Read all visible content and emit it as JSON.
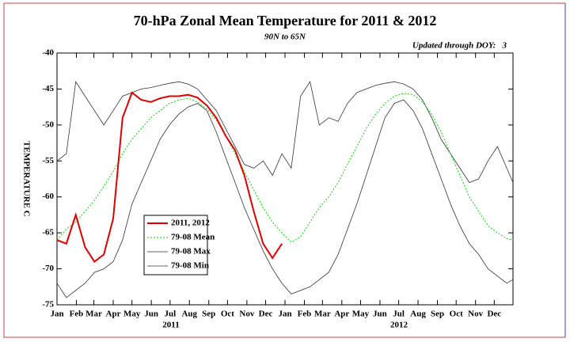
{
  "chart_data": {
    "type": "line",
    "title": "70-hPa Zonal Mean Temperature for 2011 & 2012",
    "subtitle": "90N to 65N",
    "annotation": "Updated through DOY:   3",
    "ylabel": "TEMPERATURE C",
    "year_labels": [
      "2011",
      "2012"
    ],
    "x": [
      0,
      15,
      30,
      45,
      60,
      75,
      90,
      105,
      120,
      135,
      150,
      165,
      180,
      195,
      210,
      225,
      240,
      255,
      270,
      285,
      300,
      315,
      330,
      345,
      360,
      375,
      390,
      405,
      420,
      435,
      450,
      465,
      480,
      495,
      510,
      525,
      540,
      555,
      570,
      585,
      600,
      615,
      630,
      645,
      660,
      675,
      690,
      705,
      720,
      730
    ],
    "xlim": [
      0,
      730
    ],
    "xticks": [
      {
        "value": 0,
        "label": "Jan"
      },
      {
        "value": 31,
        "label": "Feb"
      },
      {
        "value": 59,
        "label": "Mar"
      },
      {
        "value": 90,
        "label": "Apr"
      },
      {
        "value": 120,
        "label": "May"
      },
      {
        "value": 151,
        "label": "Jun"
      },
      {
        "value": 181,
        "label": "Jul"
      },
      {
        "value": 212,
        "label": "Aug"
      },
      {
        "value": 243,
        "label": "Sep"
      },
      {
        "value": 273,
        "label": "Oct"
      },
      {
        "value": 304,
        "label": "Nov"
      },
      {
        "value": 334,
        "label": "Dec"
      },
      {
        "value": 365,
        "label": "Jan"
      },
      {
        "value": 396,
        "label": "Feb"
      },
      {
        "value": 425,
        "label": "Mar"
      },
      {
        "value": 456,
        "label": "Apr"
      },
      {
        "value": 486,
        "label": "May"
      },
      {
        "value": 517,
        "label": "Jun"
      },
      {
        "value": 547,
        "label": "Jul"
      },
      {
        "value": 578,
        "label": "Aug"
      },
      {
        "value": 609,
        "label": "Sep"
      },
      {
        "value": 639,
        "label": "Oct"
      },
      {
        "value": 670,
        "label": "Nov"
      },
      {
        "value": 700,
        "label": "Dec"
      }
    ],
    "ylim": [
      -75,
      -40
    ],
    "yticks": [
      -75,
      -70,
      -65,
      -60,
      -55,
      -50,
      -45,
      -40
    ],
    "series": [
      {
        "name": "2011, 2012",
        "color": "#e00000",
        "style": "solid",
        "width": 2,
        "values": [
          -66,
          -66.5,
          -62.5,
          -67,
          -69,
          -68,
          -63,
          -49,
          -45.5,
          -46.5,
          -46.8,
          -46.3,
          -46,
          -46,
          -45.8,
          -46.2,
          -47.3,
          -49,
          -51.5,
          -53.5,
          -57,
          -62,
          -66.5,
          -68.5,
          -66.5,
          null,
          null,
          null,
          null,
          null,
          null,
          null,
          null,
          null,
          null,
          null,
          null,
          null,
          null,
          null,
          null,
          null,
          null,
          null,
          null,
          null,
          null,
          null,
          null,
          null
        ]
      },
      {
        "name": "79-08 Mean",
        "color": "#00dd00",
        "style": "dotted",
        "width": 1,
        "values": [
          -66,
          -64.5,
          -63.5,
          -62,
          -60.5,
          -58.5,
          -56.5,
          -54,
          -52,
          -50.5,
          -49,
          -48,
          -47,
          -46.5,
          -46.3,
          -46.8,
          -47.8,
          -49.3,
          -51.5,
          -54,
          -56.5,
          -59,
          -61.5,
          -63.5,
          -65,
          -66.3,
          -65.5,
          -63.5,
          -61.5,
          -60,
          -58,
          -55.5,
          -53,
          -50.5,
          -48.5,
          -47,
          -46,
          -45.6,
          -45.8,
          -46.8,
          -48.5,
          -51,
          -54,
          -57,
          -60,
          -62,
          -64,
          -65,
          -65.8,
          -66
        ]
      },
      {
        "name": "79-08 Max",
        "color": "#333333",
        "style": "solid",
        "width": 0.8,
        "values": [
          -55,
          -54,
          -44,
          -46,
          -48,
          -50,
          -48,
          -46,
          -45.5,
          -45,
          -44.8,
          -44.5,
          -44.2,
          -44,
          -44.3,
          -45,
          -46.5,
          -48,
          -50.5,
          -53,
          -55.5,
          -56,
          -55,
          -57,
          -54,
          -56,
          -46,
          -44,
          -50,
          -49,
          -49.5,
          -47,
          -45.5,
          -45,
          -44.5,
          -44.2,
          -44,
          -44.3,
          -45,
          -46.5,
          -49,
          -52,
          -54,
          -56,
          -58,
          -57.5,
          -55,
          -53,
          -56,
          -58
        ]
      },
      {
        "name": "79-08 Min",
        "color": "#333333",
        "style": "solid",
        "width": 0.8,
        "values": [
          -72,
          -74,
          -73,
          -72,
          -70.5,
          -70,
          -69,
          -66,
          -61,
          -58,
          -55,
          -52,
          -50,
          -48.5,
          -47.5,
          -47,
          -48,
          -51,
          -54.5,
          -58,
          -61.5,
          -64.5,
          -67.5,
          -70,
          -72,
          -73.5,
          -73,
          -72.5,
          -71.5,
          -70.5,
          -68,
          -64.5,
          -61,
          -57,
          -53,
          -49,
          -47,
          -46.5,
          -48,
          -50.5,
          -54,
          -57.5,
          -61,
          -64,
          -66.5,
          -68,
          -70,
          -71,
          -72,
          -71.5
        ]
      }
    ]
  }
}
